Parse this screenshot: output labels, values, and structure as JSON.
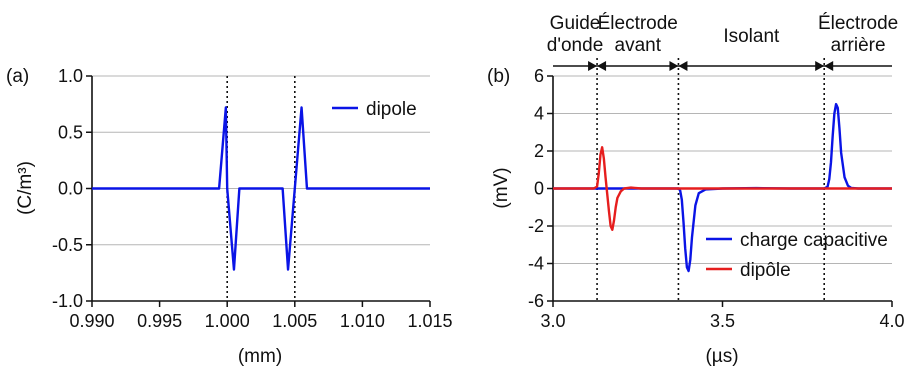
{
  "colors": {
    "blue": "#0a14e6",
    "red": "#e61e1e",
    "grid": "#b5b5b5",
    "axis": "#111111"
  },
  "chart_data": [
    {
      "type": "line",
      "panel_label": "(a)",
      "xlabel": "(mm)",
      "ylabel": "(C/m³)",
      "xlim": [
        0.99,
        1.015
      ],
      "ylim": [
        -1.0,
        1.0
      ],
      "xticks": [
        0.99,
        0.995,
        1.0,
        1.005,
        1.01,
        1.015
      ],
      "xtick_labels": [
        "0.990",
        "0.995",
        "1.000",
        "1.005",
        "1.010",
        "1.015"
      ],
      "yticks": [
        -1.0,
        -0.5,
        0.0,
        0.5,
        1.0
      ],
      "ytick_labels": [
        "-1.0",
        "-0.5",
        "0.0",
        "0.5",
        "1.0"
      ],
      "grid": "horizontal",
      "vlines": [
        1.0,
        1.005
      ],
      "legend": [
        "dipole"
      ],
      "series": [
        {
          "name": "dipole",
          "color": "blue",
          "x": [
            0.99,
            0.9994,
            0.9999,
            1.0,
            1.0005,
            1.0009,
            1.0041,
            1.0045,
            1.005,
            1.0055,
            1.0059,
            1.015
          ],
          "y": [
            0,
            0,
            0.72,
            0,
            -0.72,
            0,
            0,
            -0.72,
            0,
            0.72,
            0,
            0
          ]
        }
      ]
    },
    {
      "type": "line",
      "panel_label": "(b)",
      "xlabel": "(µs)",
      "ylabel": "(mV)",
      "xlim": [
        3.0,
        4.0
      ],
      "ylim": [
        -6,
        6
      ],
      "xticks": [
        3.0,
        3.5,
        4.0
      ],
      "xtick_labels": [
        "3.0",
        "3.5",
        "4.0"
      ],
      "yticks": [
        -6,
        -4,
        -2,
        0,
        2,
        4,
        6
      ],
      "ytick_labels": [
        "-6",
        "-4",
        "-2",
        "0",
        "2",
        "4",
        "6"
      ],
      "grid": "horizontal",
      "vlines": [
        3.13,
        3.37,
        3.8
      ],
      "regions": [
        {
          "label": "Guide\nd'onde",
          "from": 3.0,
          "to": 3.13
        },
        {
          "label": "Électrode\navant",
          "from": 3.13,
          "to": 3.37
        },
        {
          "label": "Isolant",
          "from": 3.37,
          "to": 3.8
        },
        {
          "label": "Électrode\narrière",
          "from": 3.8,
          "to": 4.0
        }
      ],
      "legend": [
        "charge capacitive",
        "dipôle"
      ],
      "series": [
        {
          "name": "charge capacitive",
          "color": "blue",
          "x": [
            3.0,
            3.35,
            3.37,
            3.375,
            3.38,
            3.385,
            3.39,
            3.395,
            3.4,
            3.405,
            3.41,
            3.42,
            3.43,
            3.45,
            3.5,
            3.6,
            3.7,
            3.78,
            3.8,
            3.81,
            3.815,
            3.82,
            3.825,
            3.83,
            3.835,
            3.84,
            3.845,
            3.85,
            3.86,
            3.87,
            3.88,
            3.9,
            4.0
          ],
          "y": [
            0,
            0,
            0,
            -0.1,
            -0.6,
            -1.8,
            -3.2,
            -4.2,
            -4.4,
            -3.8,
            -2.6,
            -0.9,
            -0.25,
            -0.05,
            0,
            0.02,
            0,
            0,
            0,
            0.1,
            0.5,
            1.4,
            2.8,
            4.0,
            4.5,
            4.3,
            3.2,
            1.9,
            0.6,
            0.15,
            0.03,
            0,
            0
          ]
        },
        {
          "name": "dipôle",
          "color": "red",
          "x": [
            3.0,
            3.12,
            3.13,
            3.135,
            3.14,
            3.145,
            3.15,
            3.155,
            3.16,
            3.165,
            3.17,
            3.175,
            3.18,
            3.185,
            3.19,
            3.2,
            3.21,
            3.23,
            3.26,
            4.0
          ],
          "y": [
            0,
            0,
            0.1,
            0.8,
            1.8,
            2.2,
            1.6,
            0.6,
            -0.3,
            -1.2,
            -2.0,
            -2.2,
            -1.7,
            -1.0,
            -0.5,
            -0.15,
            0,
            0.05,
            0,
            0
          ]
        }
      ]
    }
  ]
}
